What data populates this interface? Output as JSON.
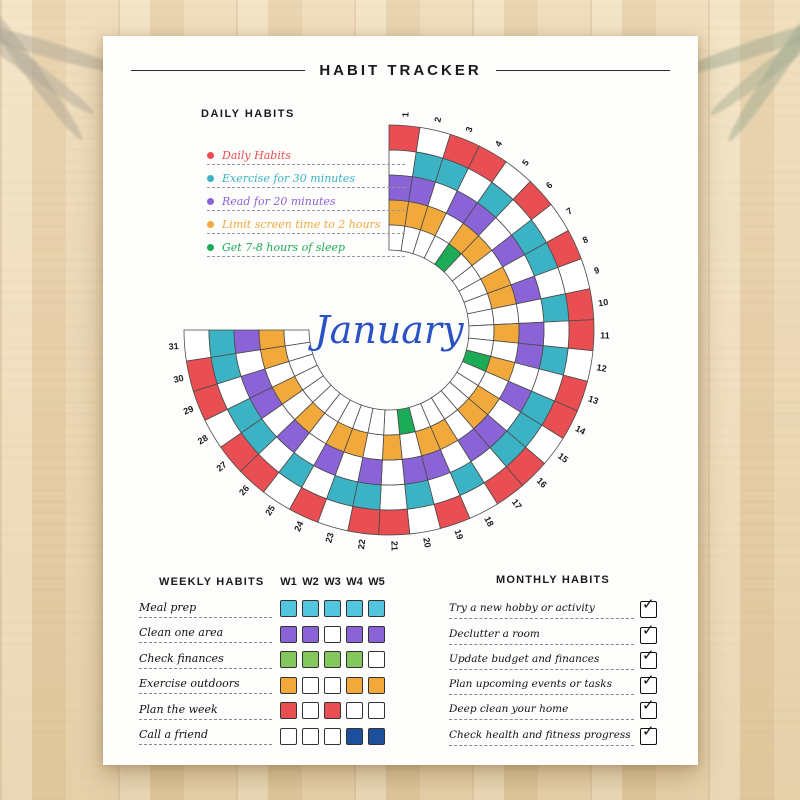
{
  "page": {
    "title": "HABIT TRACKER"
  },
  "daily": {
    "heading": "DAILY HABITS",
    "legend": [
      {
        "label": "Daily Habits",
        "color": "#e94e52"
      },
      {
        "label": "Exercise for 30 minutes",
        "color": "#3bb3c4"
      },
      {
        "label": "Read for 20 minutes",
        "color": "#8a63d6"
      },
      {
        "label": "Limit screen time to 2 hours",
        "color": "#f2a93b"
      },
      {
        "label": "Get 7-8 hours of sleep",
        "color": "#1cab57"
      }
    ]
  },
  "chart_data": {
    "type": "radial-habit-tracker",
    "center_label": "January",
    "days": 31,
    "start_angle_deg": 0,
    "sweep_deg": 270,
    "gap_position": "upper-left",
    "rings": [
      {
        "habit": "Daily Habits",
        "color": "#e94e52",
        "filled_days": [
          1,
          3,
          4,
          6,
          8,
          10,
          11,
          13,
          14,
          16,
          17,
          19,
          21,
          22,
          24,
          26,
          27,
          29,
          30
        ]
      },
      {
        "habit": "Exercise for 30 minutes",
        "color": "#3bb3c4",
        "filled_days": [
          2,
          3,
          5,
          7,
          8,
          10,
          12,
          14,
          15,
          16,
          18,
          20,
          22,
          23,
          25,
          27,
          28,
          30,
          31
        ]
      },
      {
        "habit": "Read for 20 minutes",
        "color": "#8a63d6",
        "filled_days": [
          1,
          2,
          4,
          5,
          7,
          9,
          11,
          12,
          14,
          16,
          17,
          19,
          20,
          22,
          24,
          26,
          28,
          29,
          31
        ]
      },
      {
        "habit": "Limit screen time to 2 hours",
        "color": "#f2a93b",
        "filled_days": [
          1,
          2,
          3,
          5,
          6,
          8,
          9,
          11,
          13,
          15,
          16,
          18,
          19,
          21,
          23,
          24,
          26,
          28,
          30,
          31
        ]
      },
      {
        "habit": "Get 7-8 hours of sleep",
        "color": "#1cab57",
        "filled_days": [
          5,
          13,
          20
        ]
      }
    ]
  },
  "weekly": {
    "heading": "WEEKLY HABITS",
    "week_headers": [
      "W1",
      "W2",
      "W3",
      "W4",
      "W5"
    ],
    "rows": [
      {
        "label": "Meal prep",
        "color": "#53c6dd",
        "filled": [
          true,
          true,
          true,
          true,
          true
        ]
      },
      {
        "label": "Clean one area",
        "color": "#8a63d6",
        "filled": [
          true,
          true,
          false,
          true,
          true
        ]
      },
      {
        "label": "Check finances",
        "color": "#84c75c",
        "filled": [
          true,
          true,
          true,
          true,
          false
        ]
      },
      {
        "label": "Exercise outdoors",
        "color": "#f2a93b",
        "filled": [
          true,
          false,
          false,
          true,
          true
        ]
      },
      {
        "label": "Plan the week",
        "color": "#e94e52",
        "filled": [
          true,
          false,
          true,
          false,
          false
        ]
      },
      {
        "label": "Call a friend",
        "color": "#1e4f9c",
        "filled": [
          false,
          false,
          false,
          true,
          true
        ]
      }
    ]
  },
  "monthly": {
    "heading": "MONTHLY HABITS",
    "check_glyph": "✓",
    "items": [
      {
        "label": "Try a new hobby or activity",
        "checked": true
      },
      {
        "label": "Declutter a room",
        "checked": true
      },
      {
        "label": "Update budget and finances",
        "checked": true
      },
      {
        "label": "Plan upcoming events or tasks",
        "checked": true
      },
      {
        "label": "Deep clean your home",
        "checked": true
      },
      {
        "label": "Check health and fitness progress",
        "checked": true
      }
    ]
  }
}
